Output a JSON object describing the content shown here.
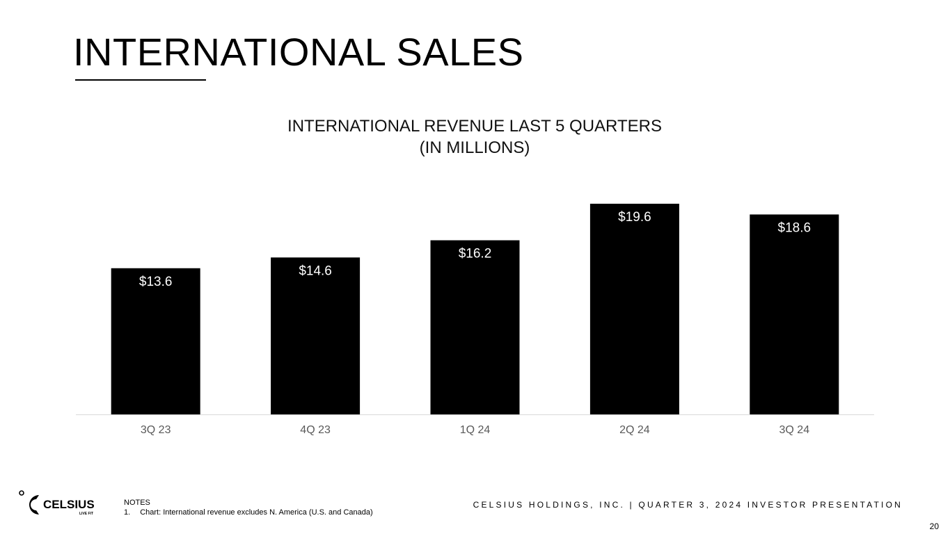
{
  "slide": {
    "title": "INTERNATIONAL SALES",
    "footer": "CELSIUS HOLDINGS, INC. | QUARTER 3, 2024 INVESTOR PRESENTATION",
    "page_number": "20",
    "notes_heading": "NOTES",
    "notes": [
      {
        "num": "1.",
        "text": "Chart: International revenue excludes N. America (U.S. and Canada)"
      }
    ],
    "logo": {
      "brand": "CELSIUS",
      "tagline": "LIVE FIT"
    }
  },
  "chart_data": {
    "type": "bar",
    "title_line1": "INTERNATIONAL REVENUE LAST 5 QUARTERS",
    "title_line2": "(IN MILLIONS)",
    "categories": [
      "3Q 23",
      "4Q 23",
      "1Q 24",
      "2Q 24",
      "3Q 24"
    ],
    "values": [
      13.6,
      14.6,
      16.2,
      19.6,
      18.6
    ],
    "data_labels": [
      "$13.6",
      "$14.6",
      "$16.2",
      "$19.6",
      "$18.6"
    ],
    "bar_color": "#000000",
    "data_label_color": "#ffffff",
    "tick_label_color": "#595959",
    "xlabel": "",
    "ylabel": "",
    "ylim": [
      0,
      19.6
    ],
    "grid": false,
    "legend": "none"
  }
}
